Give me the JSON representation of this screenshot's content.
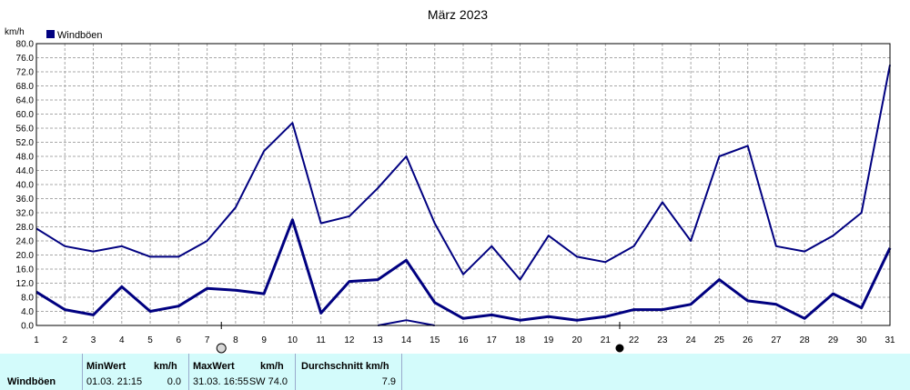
{
  "chart_data": {
    "type": "line",
    "title": "März 2023",
    "ylabel": "km/h",
    "legend": "Windböen",
    "legend_color": "#000080",
    "line_color": "#000080",
    "ylim": [
      0,
      80
    ],
    "yticks": [
      "0.0",
      "4.0",
      "8.0",
      "12.0",
      "16.0",
      "20.0",
      "24.0",
      "28.0",
      "32.0",
      "36.0",
      "40.0",
      "44.0",
      "48.0",
      "52.0",
      "56.0",
      "60.0",
      "64.0",
      "68.0",
      "72.0",
      "76.0",
      "80.0"
    ],
    "x": [
      1,
      2,
      3,
      4,
      5,
      6,
      7,
      8,
      9,
      10,
      11,
      12,
      13,
      14,
      15,
      16,
      17,
      18,
      19,
      20,
      21,
      22,
      23,
      24,
      25,
      26,
      27,
      28,
      29,
      30,
      31
    ],
    "grid": true,
    "series": [
      {
        "role": "max",
        "values": [
          27.5,
          22.5,
          21.0,
          22.5,
          19.5,
          19.5,
          24.0,
          33.5,
          49.5,
          57.5,
          29.0,
          31.0,
          39.0,
          48.0,
          29.0,
          14.5,
          22.5,
          13.0,
          25.5,
          19.5,
          18.0,
          22.5,
          35.0,
          24.0,
          48.0,
          51.0,
          22.5,
          21.0,
          25.5,
          32.0,
          74.0
        ]
      },
      {
        "role": "mean",
        "values": [
          9.5,
          4.5,
          3.0,
          11.0,
          4.0,
          5.5,
          10.5,
          10.0,
          9.0,
          30.0,
          3.5,
          12.5,
          13.0,
          18.5,
          6.5,
          2.0,
          3.0,
          1.5,
          2.5,
          1.5,
          2.5,
          4.5,
          4.5,
          6.0,
          13.0,
          7.0,
          6.0,
          2.0,
          9.0,
          5.0,
          22.0
        ]
      },
      {
        "role": "min",
        "values": [
          null,
          null,
          null,
          null,
          null,
          null,
          null,
          null,
          null,
          null,
          null,
          null,
          0.0,
          1.5,
          0.0,
          null,
          null,
          null,
          null,
          null,
          null,
          null,
          null,
          null,
          null,
          null,
          null,
          null,
          null,
          null,
          null
        ]
      }
    ],
    "moon_markers": [
      {
        "day": 7.5,
        "phase": "full-moon-icon"
      },
      {
        "day": 21.5,
        "phase": "new-moon-icon"
      }
    ]
  },
  "stats": {
    "row_label": "Windböen",
    "min_header": "MinWert",
    "min_unit": "km/h",
    "min_date": "01.03.  21:15",
    "min_value": "0.0",
    "max_header": "MaxWert",
    "max_unit": "km/h",
    "max_date": "31.03.  16:55",
    "max_dir_value": "SW 74.0",
    "avg_header": "Durchschnitt km/h",
    "avg_value": "7.9"
  }
}
